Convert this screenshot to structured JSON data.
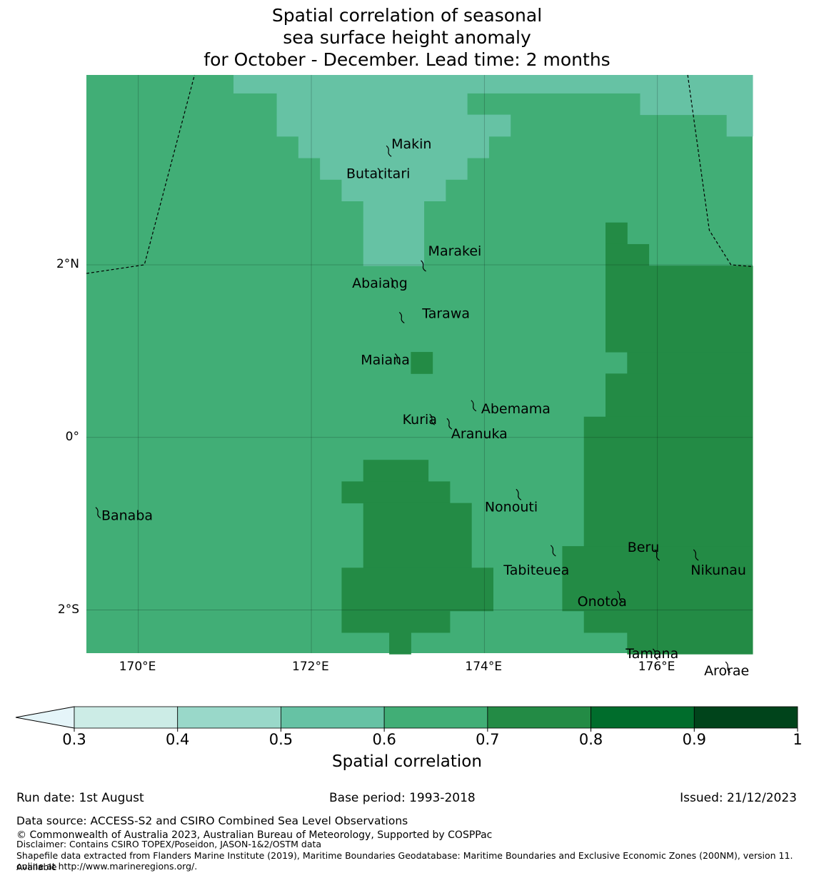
{
  "title": {
    "line1": "Spatial correlation of seasonal",
    "line2": "sea surface height anomaly",
    "line3": "for October - December. Lead time: 2 months"
  },
  "map": {
    "lon_range": [
      169.4,
      177.1
    ],
    "lat_range": [
      -2.5,
      4.2
    ],
    "cell_deg": 0.25,
    "lon_ticks": [
      {
        "value": 170,
        "label": "170°E"
      },
      {
        "value": 172,
        "label": "172°E"
      },
      {
        "value": 174,
        "label": "174°E"
      },
      {
        "value": 176,
        "label": "176°E"
      }
    ],
    "lat_ticks": [
      {
        "value": 2,
        "label": "2°N"
      },
      {
        "value": 0,
        "label": "0°"
      },
      {
        "value": -2,
        "label": "2°S"
      }
    ],
    "background_value": 0.65,
    "grid_cells_0_5_0_6": [
      {
        "lon": [
          171.1,
          177.1
        ],
        "lat": [
          3.99,
          4.2
        ]
      },
      {
        "lon": [
          171.6,
          173.8
        ],
        "lat": [
          3.74,
          3.99
        ]
      },
      {
        "lon": [
          171.6,
          174.3
        ],
        "lat": [
          3.49,
          3.74
        ]
      },
      {
        "lon": [
          171.85,
          174.05
        ],
        "lat": [
          3.24,
          3.49
        ]
      },
      {
        "lon": [
          172.1,
          173.8
        ],
        "lat": [
          2.99,
          3.24
        ]
      },
      {
        "lon": [
          172.35,
          173.55
        ],
        "lat": [
          2.74,
          2.99
        ]
      },
      {
        "lon": [
          172.6,
          173.3
        ],
        "lat": [
          2.49,
          2.74
        ]
      },
      {
        "lon": [
          172.6,
          173.3
        ],
        "lat": [
          2.24,
          2.49
        ]
      },
      {
        "lon": [
          172.6,
          173.3
        ],
        "lat": [
          1.99,
          2.24
        ]
      },
      {
        "lon": [
          175.8,
          177.1
        ],
        "lat": [
          3.74,
          3.99
        ]
      },
      {
        "lon": [
          176.8,
          177.1
        ],
        "lat": [
          3.49,
          3.74
        ]
      }
    ],
    "grid_cells_0_7_0_8": [
      {
        "lon": [
          175.4,
          175.65
        ],
        "lat": [
          2.24,
          2.49
        ]
      },
      {
        "lon": [
          175.4,
          175.9
        ],
        "lat": [
          1.99,
          2.24
        ]
      },
      {
        "lon": [
          175.4,
          177.1
        ],
        "lat": [
          0.99,
          1.99
        ]
      },
      {
        "lon": [
          175.65,
          177.1
        ],
        "lat": [
          0.74,
          0.99
        ]
      },
      {
        "lon": [
          175.4,
          177.1
        ],
        "lat": [
          0.24,
          0.74
        ]
      },
      {
        "lon": [
          175.15,
          177.1
        ],
        "lat": [
          -1.76,
          0.24
        ]
      },
      {
        "lon": [
          174.9,
          177.1
        ],
        "lat": [
          -2.01,
          -1.26
        ]
      },
      {
        "lon": [
          175.15,
          177.1
        ],
        "lat": [
          -2.26,
          -2.01
        ]
      },
      {
        "lon": [
          175.65,
          177.1
        ],
        "lat": [
          -2.51,
          -2.26
        ]
      },
      {
        "lon": [
          173.15,
          173.4
        ],
        "lat": [
          0.74,
          0.99
        ]
      },
      {
        "lon": [
          172.6,
          173.35
        ],
        "lat": [
          -0.51,
          -0.26
        ]
      },
      {
        "lon": [
          172.35,
          173.6
        ],
        "lat": [
          -0.76,
          -0.51
        ]
      },
      {
        "lon": [
          172.6,
          173.85
        ],
        "lat": [
          -1.51,
          -0.76
        ]
      },
      {
        "lon": [
          172.35,
          174.1
        ],
        "lat": [
          -2.01,
          -1.51
        ]
      },
      {
        "lon": [
          172.35,
          173.6
        ],
        "lat": [
          -2.26,
          -2.01
        ]
      },
      {
        "lon": [
          172.9,
          173.15
        ],
        "lat": [
          -2.51,
          -2.26
        ]
      }
    ],
    "eez_boundaries": [
      [
        [
          169.4,
          1.9
        ],
        [
          170.07,
          2.0
        ],
        [
          170.65,
          4.2
        ]
      ],
      [
        [
          176.35,
          4.2
        ],
        [
          176.6,
          2.4
        ],
        [
          176.85,
          2.0
        ],
        [
          177.1,
          1.98
        ]
      ]
    ],
    "islands": [
      {
        "name": "Makin",
        "lon": 172.9,
        "lat": 3.33,
        "label_dx": 3,
        "label_dy": -2
      },
      {
        "name": "Butaritari",
        "lon": 172.8,
        "lat": 3.07,
        "label_dx": -48,
        "label_dy": 8
      },
      {
        "name": "Marakei",
        "lon": 173.3,
        "lat": 2.0,
        "label_dx": 6,
        "label_dy": -13
      },
      {
        "name": "Abaiang",
        "lon": 172.95,
        "lat": 1.8,
        "label_dx": -58,
        "label_dy": 8
      },
      {
        "name": "Tarawa",
        "lon": 173.05,
        "lat": 1.4,
        "label_dx": 28,
        "label_dy": 2
      },
      {
        "name": "Maiana",
        "lon": 173.0,
        "lat": 0.92,
        "label_dx": -52,
        "label_dy": 9
      },
      {
        "name": "Abemama",
        "lon": 173.88,
        "lat": 0.38,
        "label_dx": 10,
        "label_dy": 12
      },
      {
        "name": "Kuria",
        "lon": 173.4,
        "lat": 0.22,
        "label_dx": -42,
        "label_dy": 8
      },
      {
        "name": "Aranuka",
        "lon": 173.6,
        "lat": 0.17,
        "label_dx": 2,
        "label_dy": 22
      },
      {
        "name": "Nonouti",
        "lon": 174.4,
        "lat": -0.65,
        "label_dx": -48,
        "label_dy": 25
      },
      {
        "name": "Banaba",
        "lon": 169.54,
        "lat": -0.86,
        "label_dx": 4,
        "label_dy": 12
      },
      {
        "name": "Tabiteuea",
        "lon": 174.8,
        "lat": -1.3,
        "label_dx": -70,
        "label_dy": 35
      },
      {
        "name": "Beru",
        "lon": 176.0,
        "lat": -1.35,
        "label_dx": -42,
        "label_dy": -3
      },
      {
        "name": "Nikunau",
        "lon": 176.45,
        "lat": -1.35,
        "label_dx": -8,
        "label_dy": 29
      },
      {
        "name": "Onotoa",
        "lon": 175.57,
        "lat": -1.83,
        "label_dx": -60,
        "label_dy": 15
      },
      {
        "name": "Tamana",
        "lon": 175.98,
        "lat": -2.5,
        "label_dx": -42,
        "label_dy": 7
      },
      {
        "name": "Arorae",
        "lon": 176.82,
        "lat": -2.65,
        "label_dx": -34,
        "label_dy": 13
      }
    ]
  },
  "colorbar": {
    "label": "Spatial correlation",
    "tick_labels": [
      "0.3",
      "0.4",
      "0.5",
      "0.6",
      "0.7",
      "0.8",
      "0.9",
      "1"
    ],
    "under_color": "#e5f5f9",
    "colors": [
      "#ccece6",
      "#99d8c9",
      "#66c2a4",
      "#41ae76",
      "#238b45",
      "#006d2c",
      "#00441b"
    ]
  },
  "footer": {
    "run_date": "Run date: 1st August",
    "base_period": "Base period: 1993-2018",
    "issued": "Issued: 21/12/2023",
    "data_source": "Data source: ACCESS-S2 and CSIRO Combined Sea Level Observations",
    "copyright": "© Commonwealth of Australia 2023, Australian Bureau of Meteorology, Supported by COSPPac",
    "disclaimer": "Disclaimer: Contains CSIRO TOPEX/Poseidon, JASON-1&2/OSTM data",
    "shapefile_line1": "Shapefile data extracted from Flanders Marine Institute (2019), Maritime Boundaries Geodatabase: Maritime Boundaries and Exclusive Economic Zones (200NM), version 11. Available",
    "shapefile_line2": "online at http://www.marineregions.org/."
  }
}
